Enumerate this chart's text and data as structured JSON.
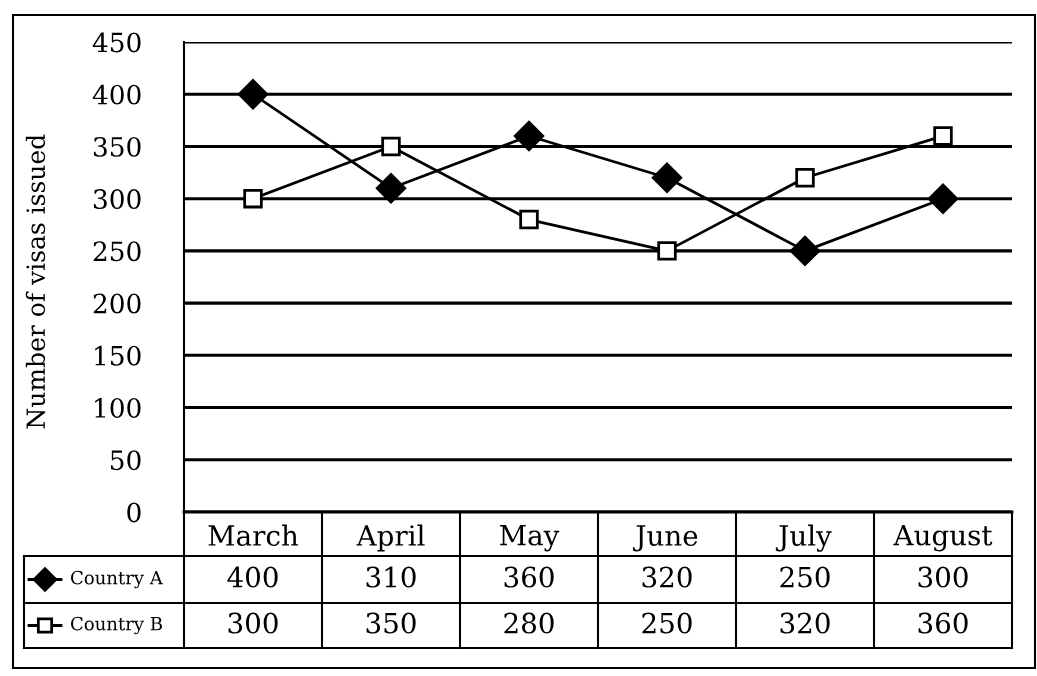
{
  "chart_data": {
    "type": "line",
    "ylabel": "Number of visas issued",
    "categories": [
      "March",
      "April",
      "May",
      "June",
      "July",
      "August"
    ],
    "series": [
      {
        "name": "Country A",
        "color": "#000000",
        "marker": "diamond",
        "values": [
          400,
          310,
          360,
          320,
          250,
          300
        ]
      },
      {
        "name": "Country B",
        "color": "#000000",
        "marker": "square",
        "values": [
          300,
          350,
          280,
          250,
          320,
          360
        ]
      }
    ],
    "ylim": [
      0,
      450
    ],
    "yticks": [
      0,
      50,
      100,
      150,
      200,
      250,
      300,
      350,
      400,
      450
    ],
    "grid": "y",
    "legend": "bottom left",
    "data_labels": true
  }
}
